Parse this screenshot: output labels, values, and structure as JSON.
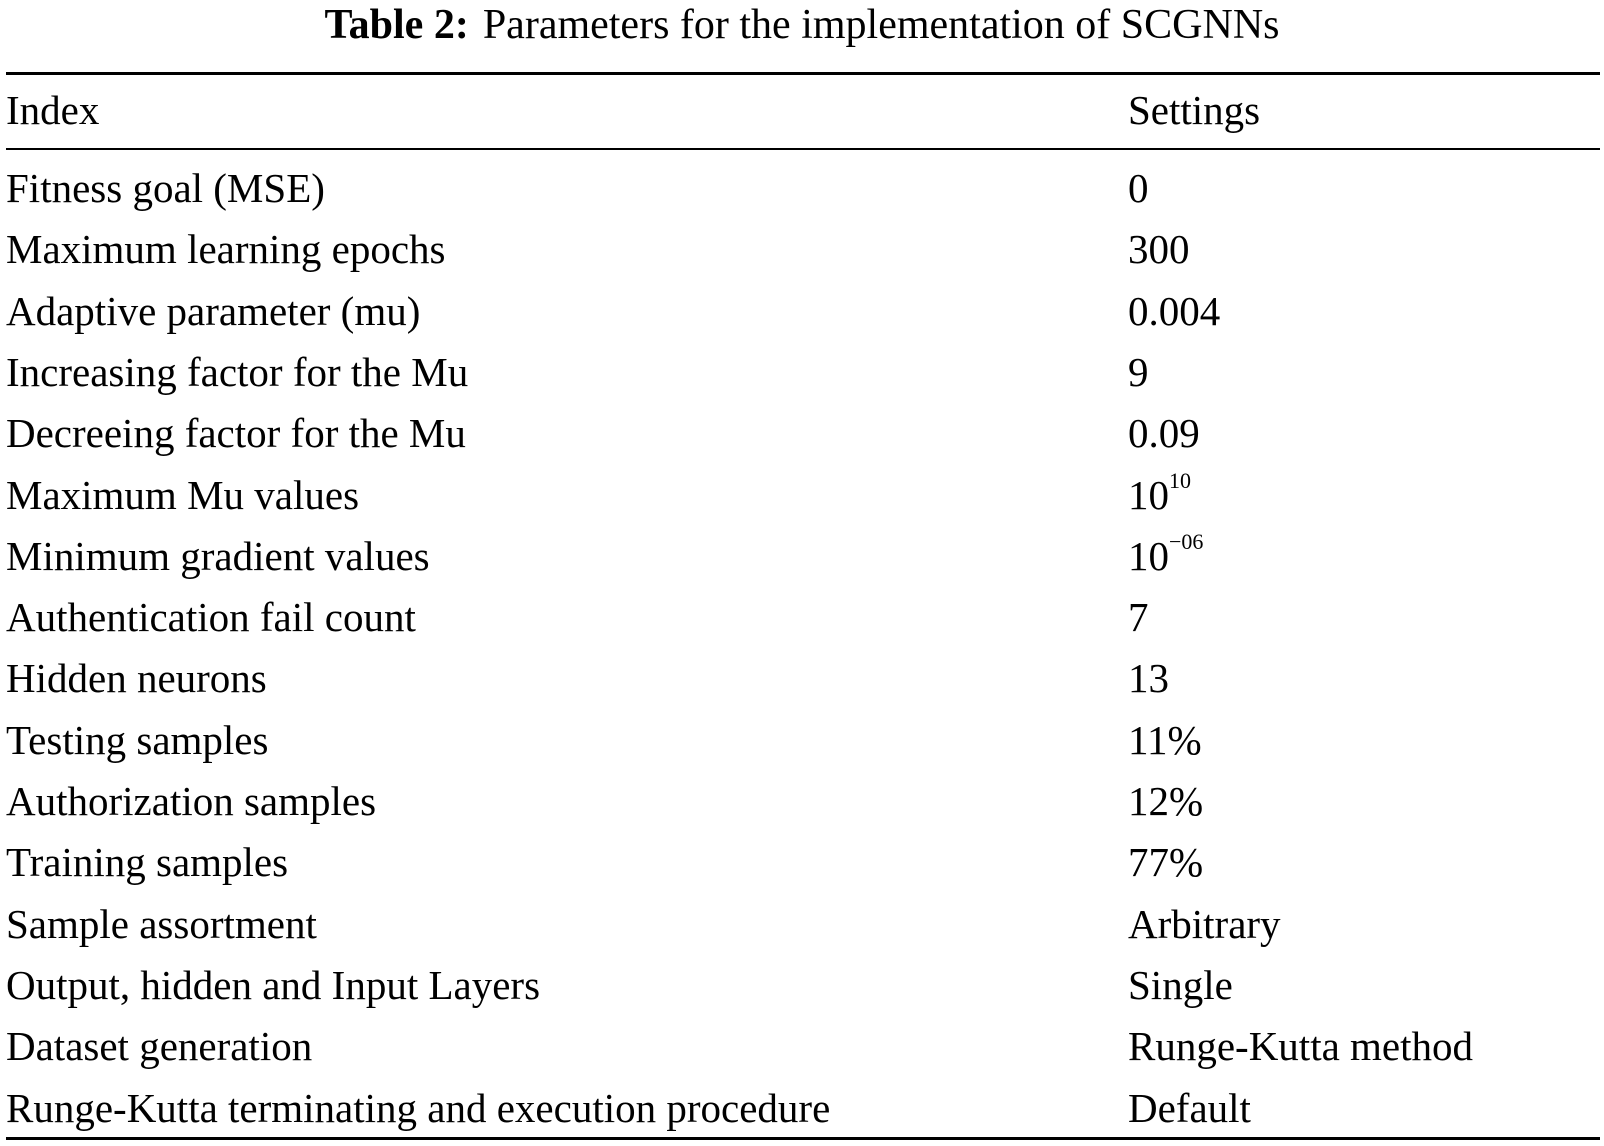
{
  "caption": {
    "label": "Table 2:",
    "text": "Parameters for the implementation of SCGNNs"
  },
  "table": {
    "headers": [
      "Index",
      "Settings"
    ],
    "rows": [
      {
        "index": "Fitness goal (MSE)",
        "setting": "0"
      },
      {
        "index": "Maximum learning epochs",
        "setting": "300"
      },
      {
        "index": "Adaptive parameter (mu)",
        "setting": "0.004"
      },
      {
        "index": "Increasing factor for the Mu",
        "setting": "9"
      },
      {
        "index": "Decreeing factor for the Mu",
        "setting": "0.09"
      },
      {
        "index": "Maximum Mu values",
        "setting": "10",
        "setting_exp": "10"
      },
      {
        "index": "Minimum gradient values",
        "setting": "10",
        "setting_exp": "−06"
      },
      {
        "index": "Authentication fail count",
        "setting": "7"
      },
      {
        "index": "Hidden neurons",
        "setting": "13"
      },
      {
        "index": "Testing samples",
        "setting": "11%"
      },
      {
        "index": "Authorization samples",
        "setting": "12%"
      },
      {
        "index": "Training samples",
        "setting": "77%"
      },
      {
        "index": "Sample assortment",
        "setting": "Arbitrary"
      },
      {
        "index": "Output, hidden and Input Layers",
        "setting": "Single"
      },
      {
        "index": "Dataset generation",
        "setting": "Runge-Kutta method"
      },
      {
        "index": "Runge-Kutta terminating and execution procedure",
        "setting": "Default"
      }
    ]
  }
}
